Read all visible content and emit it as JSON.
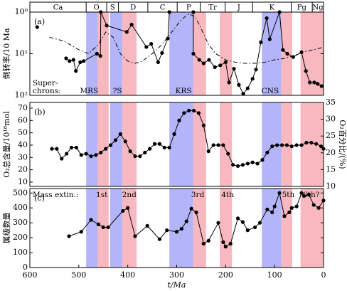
{
  "chart_data": [
    {
      "type": "line",
      "label": "(a)",
      "ylabel": "倒转率/10 Ma",
      "log": true,
      "ylim": [
        100,
        1
      ],
      "yticks": [
        {
          "value": 1,
          "label": "10⁰"
        },
        {
          "value": 10,
          "label": "10¹"
        },
        {
          "value": 100,
          "label": "10²"
        }
      ],
      "series": [
        {
          "color": "#000000",
          "markers": true,
          "x": [
            585,
            555,
            526,
            519,
            511,
            506,
            497,
            490,
            463,
            456,
            455,
            443,
            402,
            392,
            362,
            352,
            338,
            330,
            318,
            315,
            266,
            266,
            254,
            245,
            234,
            222,
            211,
            200,
            193,
            183,
            173,
            164,
            155,
            145,
            138,
            128,
            116,
            110,
            90,
            83,
            74,
            62,
            45,
            36,
            28,
            19,
            12,
            4
          ],
          "values": [
            2.3,
            null,
            12.9,
            15,
            14,
            26,
            16,
            15,
            10,
            11.3,
            1,
            2.1,
            3,
            2,
            6.9,
            5.8,
            16,
            9.6,
            4.3,
            1,
            1,
            10,
            14,
            17,
            14,
            21,
            19,
            16,
            49,
            23,
            56,
            92,
            68,
            40,
            24,
            5.3,
            1.4,
            4.5,
            1,
            8.1,
            10,
            12,
            9.2,
            26,
            49,
            49,
            53,
            60
          ]
        },
        {
          "color": "#000000",
          "style": "dashdot",
          "x": [
            560,
            530,
            500,
            480,
            460,
            445,
            430,
            415,
            400,
            385,
            370,
            350,
            330,
            310,
            290,
            275,
            262,
            250,
            235,
            220,
            200,
            180,
            160,
            140,
            120,
            100,
            80,
            60,
            40,
            20,
            0
          ],
          "values": [
            4,
            5,
            8,
            10,
            6,
            3,
            4,
            10,
            15,
            17,
            15,
            10,
            6,
            3,
            1.5,
            1.1,
            1.3,
            2.5,
            6,
            10,
            14,
            16,
            17,
            17,
            16,
            14,
            13,
            11,
            9,
            8,
            7
          ]
        }
      ],
      "annotation_lead": [
        "Super-",
        "chrons:"
      ],
      "annotations": [
        {
          "text": "MRS",
          "x": 479
        },
        {
          "text": "?S",
          "x": 421
        },
        {
          "text": "KRS",
          "x": 286
        },
        {
          "text": "CNS",
          "x": 109
        }
      ]
    },
    {
      "type": "line",
      "label": "(b)",
      "ylabel": "O₂总含量/10¹⁸mol",
      "y2label": "O₂百分比/(%)",
      "ylim": [
        6.5,
        74.6
      ],
      "yticks": [
        10,
        20,
        30,
        40,
        50,
        60,
        70
      ],
      "y2lim": [
        10,
        35
      ],
      "y2ticks": [
        10,
        15,
        20,
        25,
        30,
        35
      ],
      "series": [
        {
          "color": "#000000",
          "markers": true,
          "x": [
            555,
            545,
            535,
            525,
            515,
            505,
            495,
            485,
            475,
            465,
            455,
            445,
            435,
            425,
            415,
            405,
            395,
            385,
            375,
            365,
            355,
            345,
            335,
            325,
            315,
            305,
            295,
            285,
            275,
            265,
            255,
            245,
            235,
            225,
            215,
            205,
            195,
            185,
            175,
            165,
            155,
            145,
            135,
            125,
            115,
            105,
            95,
            85,
            75,
            65,
            55,
            45,
            35,
            25,
            15,
            5,
            0
          ],
          "values": [
            37,
            37,
            29,
            33,
            38,
            38,
            32,
            33,
            31,
            32,
            34,
            37,
            40,
            44,
            49,
            43,
            35,
            31,
            31,
            34,
            37,
            41,
            41,
            38,
            38,
            49,
            60,
            66,
            68,
            68,
            66,
            56,
            35,
            40,
            40,
            40,
            33,
            24,
            23,
            24,
            25,
            26,
            25,
            28,
            34,
            39,
            40,
            40,
            40,
            39,
            40,
            40,
            42,
            42,
            41,
            39,
            37
          ]
        }
      ]
    },
    {
      "type": "line",
      "label": "(c)",
      "ylabel": "属级数量",
      "xlabel": "t/Ma",
      "xlim": [
        600,
        0
      ],
      "xticks": [
        600,
        500,
        400,
        300,
        200,
        100,
        0
      ],
      "ylim": [
        0,
        530
      ],
      "yticks": [
        0,
        100,
        200,
        300,
        400,
        500
      ],
      "series": [
        {
          "color": "#000000",
          "markers": true,
          "x": [
            520,
            495,
            475,
            460,
            450,
            440,
            410,
            400,
            385,
            360,
            335,
            320,
            300,
            290,
            280,
            270,
            260,
            245,
            235,
            215,
            205,
            200,
            190,
            175,
            165,
            155,
            140,
            130,
            115,
            105,
            100,
            90,
            80,
            70,
            65,
            55,
            45,
            40,
            30,
            20,
            10,
            0
          ],
          "values": [
            210,
            240,
            320,
            290,
            270,
            270,
            380,
            400,
            210,
            280,
            190,
            250,
            240,
            260,
            310,
            395,
            370,
            160,
            180,
            300,
            170,
            140,
            160,
            330,
            305,
            250,
            270,
            300,
            390,
            370,
            410,
            500,
            345,
            370,
            400,
            410,
            500,
            480,
            490,
            420,
            400,
            450
          ]
        }
      ],
      "annotation_lead": "Mass extin.:",
      "annotations": [
        {
          "text": "1st",
          "x": 453
        },
        {
          "text": "2nd",
          "x": 397
        },
        {
          "text": "3rd",
          "x": 257
        },
        {
          "text": "4th",
          "x": 196
        },
        {
          "text": "5th",
          "x": 72
        },
        {
          "text": "6th?",
          "x": 25
        }
      ]
    }
  ],
  "periods": {
    "names": [
      "Ca",
      "O",
      "S",
      "D",
      "C",
      "P",
      "Tr",
      "J",
      "K",
      "Pg",
      "Ng"
    ],
    "boundaries": [
      485,
      443,
      419,
      359,
      299,
      252,
      201,
      145,
      66,
      23
    ]
  },
  "bands": [
    {
      "from": 485,
      "to": 462,
      "color": "#b4b4f8"
    },
    {
      "from": 462,
      "to": 439,
      "color": "#f8b8c0"
    },
    {
      "from": 436,
      "to": 411,
      "color": "#b4b4f8"
    },
    {
      "from": 411,
      "to": 382,
      "color": "#f8b8c0"
    },
    {
      "from": 315,
      "to": 266,
      "color": "#b4b4f8"
    },
    {
      "from": 266,
      "to": 240,
      "color": "#f8b8c0"
    },
    {
      "from": 212,
      "to": 187,
      "color": "#f8b8c0"
    },
    {
      "from": 126,
      "to": 86,
      "color": "#b4b4f8"
    },
    {
      "from": 86,
      "to": 64,
      "color": "#f8b8c0"
    },
    {
      "from": 47,
      "to": 0,
      "color": "#f8b8c0"
    }
  ]
}
